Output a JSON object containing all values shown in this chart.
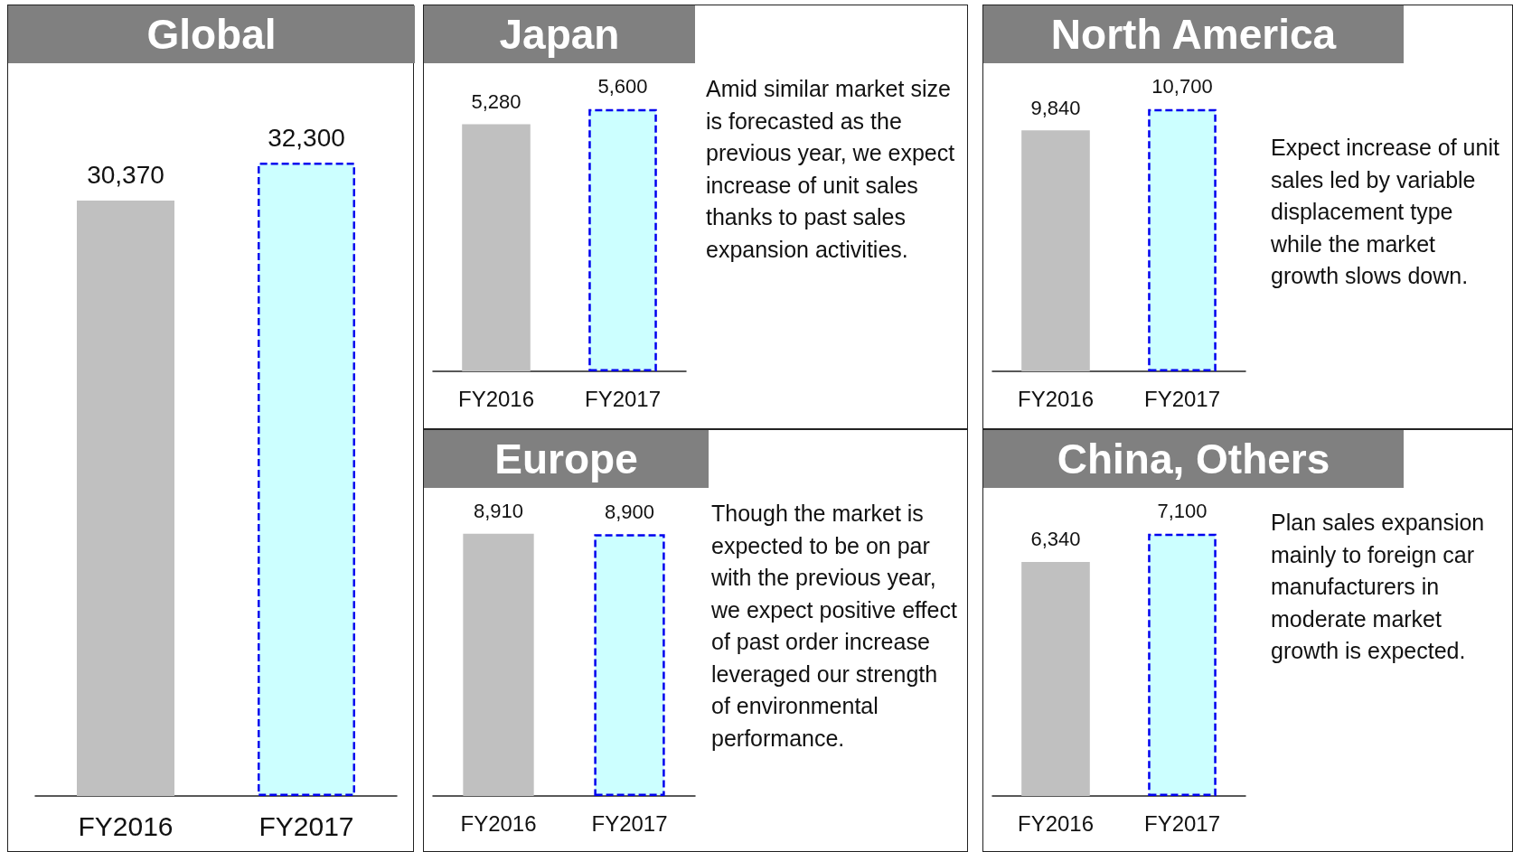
{
  "chart_data": [
    {
      "type": "bar",
      "title": "Global",
      "categories": [
        "FY2016",
        "FY2017"
      ],
      "values": [
        30370,
        32300
      ],
      "colors": [
        "#c0c0c0",
        "#ccffff"
      ],
      "value_labels": [
        "30,370",
        "32,300"
      ]
    },
    {
      "type": "bar",
      "title": "Japan",
      "categories": [
        "FY2016",
        "FY2017"
      ],
      "values": [
        5280,
        5600
      ],
      "colors": [
        "#c0c0c0",
        "#ccffff"
      ],
      "value_labels": [
        "5,280",
        "5,600"
      ],
      "annotations": [
        "Amid similar market size is forecasted as the previous year, we expect increase of unit sales thanks to past sales expansion activities."
      ]
    },
    {
      "type": "bar",
      "title": "North America",
      "categories": [
        "FY2016",
        "FY2017"
      ],
      "values": [
        9840,
        10700
      ],
      "colors": [
        "#c0c0c0",
        "#ccffff"
      ],
      "value_labels": [
        "9,840",
        "10,700"
      ],
      "annotations": [
        "Expect increase of unit sales led by variable displacement type while the market growth slows down."
      ]
    },
    {
      "type": "bar",
      "title": "Europe",
      "categories": [
        "FY2016",
        "FY2017"
      ],
      "values": [
        8910,
        8900
      ],
      "colors": [
        "#c0c0c0",
        "#ccffff"
      ],
      "value_labels": [
        "8,910",
        "8,900"
      ],
      "annotations": [
        "Though the market is expected to be on par with the previous year, we expect positive effect of past order increase leveraged our strength of environmental performance."
      ]
    },
    {
      "type": "bar",
      "title": "China, Others",
      "categories": [
        "FY2016",
        "FY2017"
      ],
      "values": [
        6340,
        7100
      ],
      "colors": [
        "#c0c0c0",
        "#ccffff"
      ],
      "value_labels": [
        "6,340",
        "7,100"
      ],
      "annotations": [
        "Plan sales expansion mainly to foreign car manufacturers in moderate market growth is expected."
      ]
    }
  ]
}
